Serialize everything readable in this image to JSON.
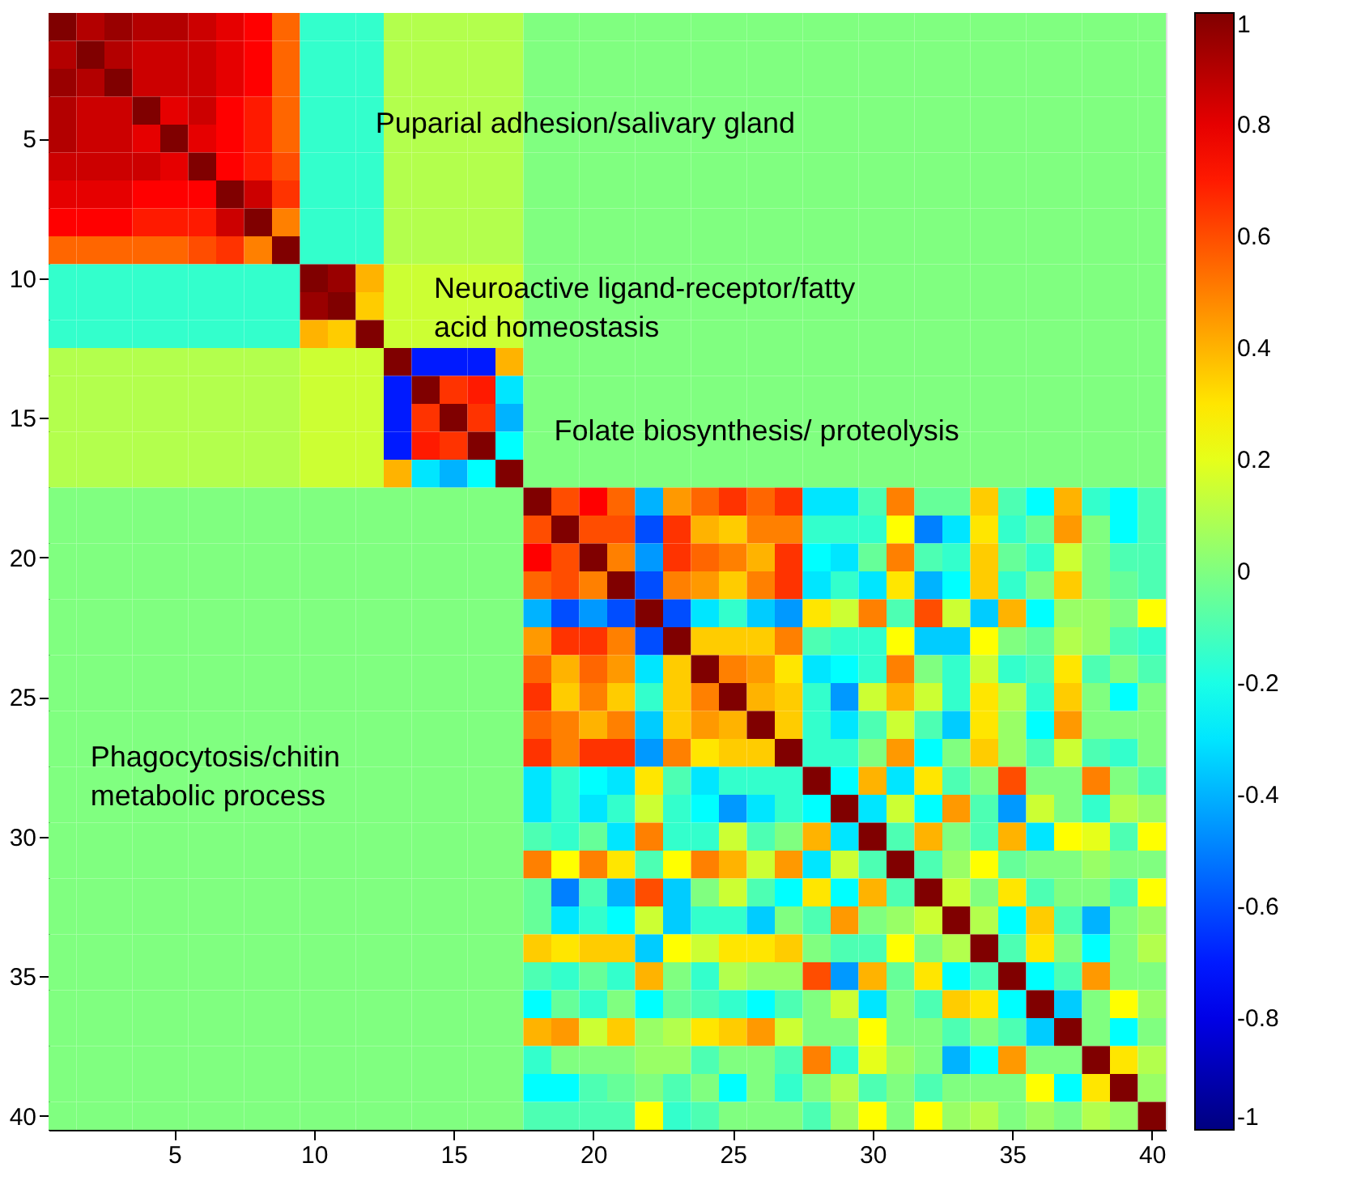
{
  "chart_data": {
    "type": "heatmap",
    "categories": [
      null,
      null,
      null,
      null,
      "5",
      null,
      null,
      null,
      null,
      "10",
      null,
      null,
      null,
      null,
      "15",
      null,
      null,
      null,
      null,
      "20",
      null,
      null,
      null,
      null,
      "25",
      null,
      null,
      null,
      null,
      "30",
      null,
      null,
      null,
      null,
      "35",
      null,
      null,
      null,
      null,
      "40"
    ],
    "y_categories": [
      null,
      null,
      null,
      null,
      "5",
      null,
      null,
      null,
      null,
      "10",
      null,
      null,
      null,
      null,
      "15",
      null,
      null,
      null,
      null,
      "20",
      null,
      null,
      null,
      null,
      "25",
      null,
      null,
      null,
      null,
      "30",
      null,
      null,
      null,
      null,
      "35",
      null,
      null,
      null,
      null,
      "40"
    ],
    "cells": [
      [
        1,
        0.9,
        0.95,
        0.9,
        0.9,
        0.85,
        0.8,
        0.75,
        0.55,
        -0.15,
        -0.15,
        -0.15,
        0.1,
        0.1,
        0.1,
        0.1,
        0.1,
        0,
        0,
        0,
        0,
        0,
        0,
        0,
        0,
        0,
        0,
        0,
        0,
        0,
        0,
        0,
        0,
        0,
        0,
        0,
        0,
        0,
        0,
        0
      ],
      [
        0.9,
        1,
        0.9,
        0.85,
        0.85,
        0.85,
        0.8,
        0.75,
        0.55,
        -0.15,
        -0.15,
        -0.15,
        0.1,
        0.1,
        0.1,
        0.1,
        0.1,
        0,
        0,
        0,
        0,
        0,
        0,
        0,
        0,
        0,
        0,
        0,
        0,
        0,
        0,
        0,
        0,
        0,
        0,
        0,
        0,
        0,
        0,
        0
      ],
      [
        0.95,
        0.9,
        1,
        0.85,
        0.85,
        0.85,
        0.8,
        0.75,
        0.55,
        -0.15,
        -0.15,
        -0.15,
        0.1,
        0.1,
        0.1,
        0.1,
        0.1,
        0,
        0,
        0,
        0,
        0,
        0,
        0,
        0,
        0,
        0,
        0,
        0,
        0,
        0,
        0,
        0,
        0,
        0,
        0,
        0,
        0,
        0,
        0
      ],
      [
        0.9,
        0.85,
        0.85,
        1,
        0.8,
        0.85,
        0.75,
        0.7,
        0.55,
        -0.15,
        -0.15,
        -0.15,
        0.1,
        0.1,
        0.1,
        0.1,
        0.1,
        0,
        0,
        0,
        0,
        0,
        0,
        0,
        0,
        0,
        0,
        0,
        0,
        0,
        0,
        0,
        0,
        0,
        0,
        0,
        0,
        0,
        0,
        0
      ],
      [
        0.9,
        0.85,
        0.85,
        0.8,
        1,
        0.8,
        0.75,
        0.7,
        0.55,
        -0.15,
        -0.15,
        -0.15,
        0.1,
        0.1,
        0.1,
        0.1,
        0.1,
        0,
        0,
        0,
        0,
        0,
        0,
        0,
        0,
        0,
        0,
        0,
        0,
        0,
        0,
        0,
        0,
        0,
        0,
        0,
        0,
        0,
        0,
        0
      ],
      [
        0.85,
        0.85,
        0.85,
        0.85,
        0.8,
        1,
        0.75,
        0.7,
        0.6,
        -0.15,
        -0.15,
        -0.15,
        0.1,
        0.1,
        0.1,
        0.1,
        0.1,
        0,
        0,
        0,
        0,
        0,
        0,
        0,
        0,
        0,
        0,
        0,
        0,
        0,
        0,
        0,
        0,
        0,
        0,
        0,
        0,
        0,
        0,
        0
      ],
      [
        0.8,
        0.8,
        0.8,
        0.75,
        0.75,
        0.75,
        1,
        0.85,
        0.65,
        -0.15,
        -0.15,
        -0.15,
        0.1,
        0.1,
        0.1,
        0.1,
        0.1,
        0,
        0,
        0,
        0,
        0,
        0,
        0,
        0,
        0,
        0,
        0,
        0,
        0,
        0,
        0,
        0,
        0,
        0,
        0,
        0,
        0,
        0,
        0
      ],
      [
        0.75,
        0.75,
        0.75,
        0.7,
        0.7,
        0.7,
        0.85,
        1,
        0.5,
        -0.15,
        -0.15,
        -0.15,
        0.1,
        0.1,
        0.1,
        0.1,
        0.1,
        0,
        0,
        0,
        0,
        0,
        0,
        0,
        0,
        0,
        0,
        0,
        0,
        0,
        0,
        0,
        0,
        0,
        0,
        0,
        0,
        0,
        0,
        0
      ],
      [
        0.55,
        0.55,
        0.55,
        0.55,
        0.55,
        0.6,
        0.65,
        0.5,
        1,
        -0.15,
        -0.15,
        -0.15,
        0.1,
        0.1,
        0.1,
        0.1,
        0.1,
        0,
        0,
        0,
        0,
        0,
        0,
        0,
        0,
        0,
        0,
        0,
        0,
        0,
        0,
        0,
        0,
        0,
        0,
        0,
        0,
        0,
        0,
        0
      ],
      [
        -0.15,
        -0.15,
        -0.15,
        -0.15,
        -0.15,
        -0.15,
        -0.15,
        -0.15,
        -0.15,
        1,
        0.95,
        0.4,
        0.15,
        0.15,
        0.15,
        0.15,
        0.15,
        0,
        0,
        0,
        0,
        0,
        0,
        0,
        0,
        0,
        0,
        0,
        0,
        0,
        0,
        0,
        0,
        0,
        0,
        0,
        0,
        0,
        0,
        0
      ],
      [
        -0.15,
        -0.15,
        -0.15,
        -0.15,
        -0.15,
        -0.15,
        -0.15,
        -0.15,
        -0.15,
        0.95,
        1,
        0.35,
        0.15,
        0.15,
        0.15,
        0.15,
        0.15,
        0,
        0,
        0,
        0,
        0,
        0,
        0,
        0,
        0,
        0,
        0,
        0,
        0,
        0,
        0,
        0,
        0,
        0,
        0,
        0,
        0,
        0,
        0
      ],
      [
        -0.15,
        -0.15,
        -0.15,
        -0.15,
        -0.15,
        -0.15,
        -0.15,
        -0.15,
        -0.15,
        0.4,
        0.35,
        1,
        0.15,
        0.15,
        0.15,
        0.15,
        0.15,
        0,
        0,
        0,
        0,
        0,
        0,
        0,
        0,
        0,
        0,
        0,
        0,
        0,
        0,
        0,
        0,
        0,
        0,
        0,
        0,
        0,
        0,
        0
      ],
      [
        0.1,
        0.1,
        0.1,
        0.1,
        0.1,
        0.1,
        0.1,
        0.1,
        0.1,
        0.15,
        0.15,
        0.15,
        1,
        -0.7,
        -0.7,
        -0.7,
        0.4,
        0,
        0,
        0,
        0,
        0,
        0,
        0,
        0,
        0,
        0,
        0,
        0,
        0,
        0,
        0,
        0,
        0,
        0,
        0,
        0,
        0,
        0,
        0
      ],
      [
        0.1,
        0.1,
        0.1,
        0.1,
        0.1,
        0.1,
        0.1,
        0.1,
        0.1,
        0.15,
        0.15,
        0.15,
        -0.7,
        1,
        0.65,
        0.7,
        -0.3,
        0,
        0,
        0,
        0,
        0,
        0,
        0,
        0,
        0,
        0,
        0,
        0,
        0,
        0,
        0,
        0,
        0,
        0,
        0,
        0,
        0,
        0,
        0
      ],
      [
        0.1,
        0.1,
        0.1,
        0.1,
        0.1,
        0.1,
        0.1,
        0.1,
        0.1,
        0.15,
        0.15,
        0.15,
        -0.7,
        0.65,
        1,
        0.65,
        -0.4,
        0,
        0,
        0,
        0,
        0,
        0,
        0,
        0,
        0,
        0,
        0,
        0,
        0,
        0,
        0,
        0,
        0,
        0,
        0,
        0,
        0,
        0,
        0
      ],
      [
        0.1,
        0.1,
        0.1,
        0.1,
        0.1,
        0.1,
        0.1,
        0.1,
        0.1,
        0.15,
        0.15,
        0.15,
        -0.7,
        0.7,
        0.65,
        1,
        -0.25,
        0,
        0,
        0,
        0,
        0,
        0,
        0,
        0,
        0,
        0,
        0,
        0,
        0,
        0,
        0,
        0,
        0,
        0,
        0,
        0,
        0,
        0,
        0
      ],
      [
        0.1,
        0.1,
        0.1,
        0.1,
        0.1,
        0.1,
        0.1,
        0.1,
        0.1,
        0.15,
        0.15,
        0.15,
        0.4,
        -0.3,
        -0.4,
        -0.25,
        1,
        0,
        0,
        0,
        0,
        0,
        0,
        0,
        0,
        0,
        0,
        0,
        0,
        0,
        0,
        0,
        0,
        0,
        0,
        0,
        0,
        0,
        0,
        0
      ],
      [
        0,
        0,
        0,
        0,
        0,
        0,
        0,
        0,
        0,
        0,
        0,
        0,
        0,
        0,
        0,
        0,
        0,
        1,
        0.6,
        0.75,
        0.55,
        -0.4,
        0.45,
        0.55,
        0.65,
        0.55,
        0.65,
        -0.3,
        -0.3,
        -0.1,
        0.5,
        -0.05,
        -0.05,
        0.35,
        -0.1,
        -0.25,
        0.4,
        -0.15,
        -0.25,
        -0.1
      ],
      [
        0,
        0,
        0,
        0,
        0,
        0,
        0,
        0,
        0,
        0,
        0,
        0,
        0,
        0,
        0,
        0,
        0,
        0.6,
        1,
        0.6,
        0.6,
        -0.6,
        0.65,
        0.4,
        0.35,
        0.5,
        0.5,
        -0.15,
        -0.15,
        -0.15,
        0.25,
        -0.5,
        -0.3,
        0.3,
        -0.15,
        -0.05,
        0.45,
        0,
        -0.25,
        -0.1
      ],
      [
        0,
        0,
        0,
        0,
        0,
        0,
        0,
        0,
        0,
        0,
        0,
        0,
        0,
        0,
        0,
        0,
        0,
        0.75,
        0.6,
        1,
        0.5,
        -0.45,
        0.65,
        0.55,
        0.5,
        0.4,
        0.65,
        -0.25,
        -0.3,
        -0.05,
        0.5,
        -0.1,
        -0.15,
        0.35,
        -0.05,
        -0.15,
        0.15,
        0,
        -0.1,
        -0.1
      ],
      [
        0,
        0,
        0,
        0,
        0,
        0,
        0,
        0,
        0,
        0,
        0,
        0,
        0,
        0,
        0,
        0,
        0,
        0.55,
        0.6,
        0.5,
        1,
        -0.6,
        0.5,
        0.45,
        0.35,
        0.5,
        0.65,
        -0.3,
        -0.15,
        -0.3,
        0.3,
        -0.4,
        -0.25,
        0.35,
        -0.15,
        0,
        0.35,
        0,
        -0.05,
        -0.1
      ],
      [
        0,
        0,
        0,
        0,
        0,
        0,
        0,
        0,
        0,
        0,
        0,
        0,
        0,
        0,
        0,
        0,
        0,
        -0.4,
        -0.6,
        -0.45,
        -0.6,
        1,
        -0.6,
        -0.3,
        -0.15,
        -0.35,
        -0.45,
        0.3,
        0.15,
        0.5,
        -0.1,
        0.6,
        0.15,
        -0.35,
        0.4,
        -0.25,
        0.05,
        0.05,
        0,
        0.25
      ],
      [
        0,
        0,
        0,
        0,
        0,
        0,
        0,
        0,
        0,
        0,
        0,
        0,
        0,
        0,
        0,
        0,
        0,
        0.45,
        0.65,
        0.65,
        0.5,
        -0.6,
        1,
        0.35,
        0.35,
        0.35,
        0.5,
        -0.1,
        -0.15,
        -0.15,
        0.25,
        -0.35,
        -0.35,
        0.25,
        0,
        -0.05,
        0.1,
        0.05,
        -0.1,
        -0.15
      ],
      [
        0,
        0,
        0,
        0,
        0,
        0,
        0,
        0,
        0,
        0,
        0,
        0,
        0,
        0,
        0,
        0,
        0,
        0.55,
        0.4,
        0.55,
        0.45,
        -0.3,
        0.35,
        1,
        0.5,
        0.45,
        0.3,
        -0.3,
        -0.25,
        -0.15,
        0.5,
        0,
        -0.15,
        0.15,
        -0.15,
        -0.1,
        0.3,
        -0.1,
        0,
        -0.1
      ],
      [
        0,
        0,
        0,
        0,
        0,
        0,
        0,
        0,
        0,
        0,
        0,
        0,
        0,
        0,
        0,
        0,
        0,
        0.65,
        0.35,
        0.5,
        0.35,
        -0.15,
        0.35,
        0.5,
        1,
        0.4,
        0.35,
        -0.15,
        -0.45,
        0.15,
        0.4,
        0.15,
        -0.15,
        0.3,
        0.1,
        -0.15,
        0.35,
        0,
        -0.25,
        0
      ],
      [
        0,
        0,
        0,
        0,
        0,
        0,
        0,
        0,
        0,
        0,
        0,
        0,
        0,
        0,
        0,
        0,
        0,
        0.55,
        0.5,
        0.4,
        0.5,
        -0.35,
        0.35,
        0.45,
        0.4,
        1,
        0.35,
        -0.15,
        -0.3,
        -0.1,
        0.15,
        -0.1,
        -0.35,
        0.3,
        0.05,
        -0.25,
        0.45,
        0,
        0,
        0
      ],
      [
        0,
        0,
        0,
        0,
        0,
        0,
        0,
        0,
        0,
        0,
        0,
        0,
        0,
        0,
        0,
        0,
        0,
        0.65,
        0.5,
        0.65,
        0.65,
        -0.45,
        0.5,
        0.3,
        0.35,
        0.35,
        1,
        -0.15,
        -0.15,
        0,
        0.45,
        -0.25,
        0,
        0.35,
        0.05,
        -0.1,
        0.15,
        -0.1,
        -0.15,
        0
      ],
      [
        0,
        0,
        0,
        0,
        0,
        0,
        0,
        0,
        0,
        0,
        0,
        0,
        0,
        0,
        0,
        0,
        0,
        -0.3,
        -0.15,
        -0.25,
        -0.3,
        0.3,
        -0.1,
        -0.3,
        -0.15,
        -0.15,
        -0.15,
        1,
        -0.25,
        0.4,
        -0.3,
        0.3,
        -0.1,
        0,
        0.6,
        0,
        0,
        0.5,
        0,
        -0.1
      ],
      [
        0,
        0,
        0,
        0,
        0,
        0,
        0,
        0,
        0,
        0,
        0,
        0,
        0,
        0,
        0,
        0,
        0,
        -0.3,
        -0.15,
        -0.3,
        -0.15,
        0.15,
        -0.15,
        -0.25,
        -0.45,
        -0.3,
        -0.15,
        -0.25,
        1,
        -0.3,
        0.15,
        -0.25,
        0.45,
        -0.1,
        -0.45,
        0.15,
        0,
        -0.15,
        0.1,
        0.05
      ],
      [
        0,
        0,
        0,
        0,
        0,
        0,
        0,
        0,
        0,
        0,
        0,
        0,
        0,
        0,
        0,
        0,
        0,
        -0.1,
        -0.15,
        -0.05,
        -0.3,
        0.5,
        -0.15,
        -0.15,
        0.15,
        -0.1,
        0,
        0.4,
        -0.3,
        1,
        -0.1,
        0.4,
        0,
        -0.1,
        0.4,
        -0.3,
        0.25,
        0.2,
        -0.1,
        0.25
      ],
      [
        0,
        0,
        0,
        0,
        0,
        0,
        0,
        0,
        0,
        0,
        0,
        0,
        0,
        0,
        0,
        0,
        0,
        0.5,
        0.25,
        0.5,
        0.3,
        -0.1,
        0.25,
        0.5,
        0.4,
        0.15,
        0.45,
        -0.3,
        0.15,
        -0.1,
        1,
        -0.1,
        0.05,
        0.25,
        -0.05,
        0,
        0,
        0.05,
        0,
        0
      ],
      [
        0,
        0,
        0,
        0,
        0,
        0,
        0,
        0,
        0,
        0,
        0,
        0,
        0,
        0,
        0,
        0,
        0,
        -0.05,
        -0.5,
        -0.1,
        -0.4,
        0.6,
        -0.35,
        0,
        0.15,
        -0.1,
        -0.25,
        0.3,
        -0.25,
        0.4,
        -0.1,
        1,
        0.15,
        0,
        0.3,
        -0.1,
        0,
        0,
        -0.1,
        0.25
      ],
      [
        0,
        0,
        0,
        0,
        0,
        0,
        0,
        0,
        0,
        0,
        0,
        0,
        0,
        0,
        0,
        0,
        0,
        -0.05,
        -0.3,
        -0.15,
        -0.25,
        0.15,
        -0.35,
        -0.15,
        -0.15,
        -0.35,
        0,
        -0.1,
        0.45,
        0,
        0.05,
        0.15,
        1,
        0.1,
        -0.25,
        0.35,
        -0.1,
        -0.4,
        0,
        0.05
      ],
      [
        0,
        0,
        0,
        0,
        0,
        0,
        0,
        0,
        0,
        0,
        0,
        0,
        0,
        0,
        0,
        0,
        0,
        0.35,
        0.3,
        0.35,
        0.35,
        -0.35,
        0.25,
        0.15,
        0.3,
        0.3,
        0.35,
        0,
        -0.1,
        -0.1,
        0.25,
        0,
        0.1,
        1,
        -0.1,
        0.3,
        0,
        -0.25,
        0,
        0.1
      ],
      [
        0,
        0,
        0,
        0,
        0,
        0,
        0,
        0,
        0,
        0,
        0,
        0,
        0,
        0,
        0,
        0,
        0,
        -0.1,
        -0.15,
        -0.05,
        -0.15,
        0.4,
        0,
        -0.15,
        0.1,
        0.05,
        0.05,
        0.6,
        -0.45,
        0.4,
        -0.05,
        0.3,
        -0.25,
        -0.1,
        1,
        -0.25,
        -0.1,
        0.45,
        0,
        0
      ],
      [
        0,
        0,
        0,
        0,
        0,
        0,
        0,
        0,
        0,
        0,
        0,
        0,
        0,
        0,
        0,
        0,
        0,
        -0.25,
        -0.05,
        -0.15,
        0,
        -0.25,
        -0.05,
        -0.1,
        -0.15,
        -0.25,
        -0.1,
        0,
        0.15,
        -0.3,
        0,
        -0.1,
        0.35,
        0.3,
        -0.25,
        1,
        -0.35,
        0,
        0.25,
        0.05
      ],
      [
        0,
        0,
        0,
        0,
        0,
        0,
        0,
        0,
        0,
        0,
        0,
        0,
        0,
        0,
        0,
        0,
        0,
        0.4,
        0.45,
        0.15,
        0.35,
        0.05,
        0.1,
        0.3,
        0.35,
        0.45,
        0.15,
        0,
        0,
        0.25,
        0,
        0,
        -0.1,
        0,
        -0.1,
        -0.35,
        1,
        0,
        -0.25,
        0
      ],
      [
        0,
        0,
        0,
        0,
        0,
        0,
        0,
        0,
        0,
        0,
        0,
        0,
        0,
        0,
        0,
        0,
        0,
        -0.15,
        0,
        0,
        0,
        0.05,
        0.05,
        -0.1,
        0,
        0,
        -0.1,
        0.5,
        -0.15,
        0.2,
        0.05,
        0,
        -0.4,
        -0.25,
        0.45,
        0,
        0,
        1,
        0.3,
        0.1
      ],
      [
        0,
        0,
        0,
        0,
        0,
        0,
        0,
        0,
        0,
        0,
        0,
        0,
        0,
        0,
        0,
        0,
        0,
        -0.25,
        -0.25,
        -0.1,
        -0.05,
        0,
        -0.1,
        0,
        -0.25,
        0,
        -0.15,
        0,
        0.1,
        -0.1,
        0,
        -0.1,
        0,
        0,
        0,
        0.25,
        -0.25,
        0.3,
        1,
        0.05
      ],
      [
        0,
        0,
        0,
        0,
        0,
        0,
        0,
        0,
        0,
        0,
        0,
        0,
        0,
        0,
        0,
        0,
        0,
        -0.1,
        -0.1,
        -0.1,
        -0.1,
        0.25,
        -0.15,
        -0.1,
        0,
        0,
        0,
        -0.1,
        0.05,
        0.25,
        0,
        0.25,
        0.05,
        0.1,
        0,
        0.05,
        0,
        0.1,
        0.05,
        1
      ]
    ],
    "clim": [
      -1,
      1
    ],
    "cticks": [
      -1,
      -0.8,
      -0.6,
      -0.4,
      -0.2,
      0,
      0.2,
      0.4,
      0.6,
      0.8,
      1
    ],
    "annotations": [
      "Puparial adhesion/salivary gland",
      "Neuroactive ligand-receptor/fatty\nacid homeostasis",
      "Folate biosynthesis/ proteolysis",
      "Phagocytosis/chitin\nmetabolic process"
    ]
  }
}
